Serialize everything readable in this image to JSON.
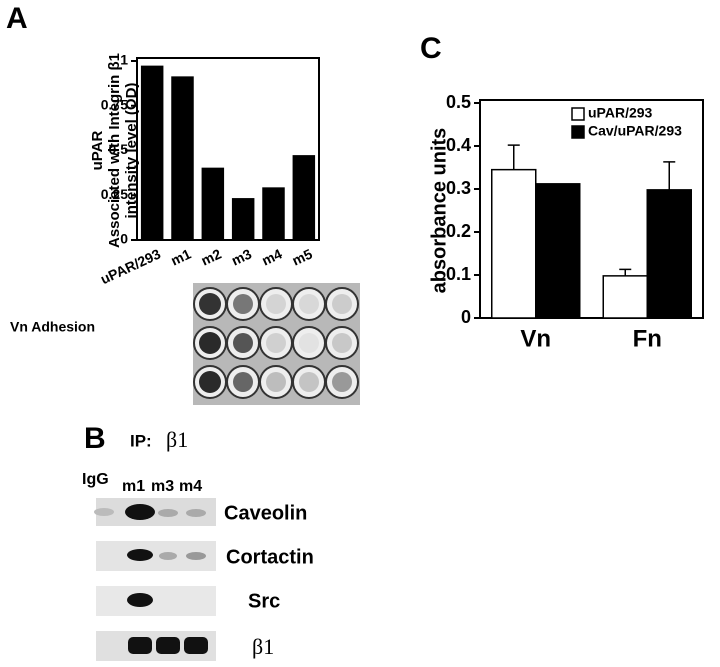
{
  "panel_labels": [
    "A",
    "B",
    "C"
  ],
  "adhesion_label": "Vn Adhesion",
  "blot": {
    "ip_label": "IP:",
    "ip_antibody": "β1",
    "lanes": [
      "IgG",
      "m1",
      "m3",
      "m4"
    ],
    "rows": [
      "Caveolin",
      "Cortactin",
      "Src",
      "β1"
    ]
  },
  "chart_data": [
    {
      "type": "bar",
      "ylabel": [
        "uPAR",
        "Associated with Integrin β1",
        "intensity level (OD)"
      ],
      "categories": [
        "uPAR/293",
        "m1",
        "m2",
        "m3",
        "m4",
        "m5"
      ],
      "values": [
        0.97,
        0.91,
        0.4,
        0.23,
        0.29,
        0.47
      ],
      "color": "#000000",
      "ylim": [
        0,
        1
      ],
      "yticks": [
        0,
        0.25,
        0.5,
        0.75,
        1
      ]
    },
    {
      "type": "grouped_bar",
      "ylabel": "absorbance units",
      "categories": [
        "Vn",
        "Fn"
      ],
      "series": [
        {
          "name": "uPAR/293",
          "color": "#ffffff",
          "values": [
            0.345,
            0.098
          ],
          "errors": [
            0.057,
            0.015
          ]
        },
        {
          "name": "Cav/uPAR/293",
          "color": "#000000",
          "values": [
            0.312,
            0.298
          ],
          "errors": [
            null,
            0.065
          ]
        }
      ],
      "ylim": [
        0,
        0.5
      ],
      "yticks": [
        0,
        0.1,
        0.2,
        0.3,
        0.4,
        0.5
      ],
      "legend": "upper right"
    }
  ]
}
